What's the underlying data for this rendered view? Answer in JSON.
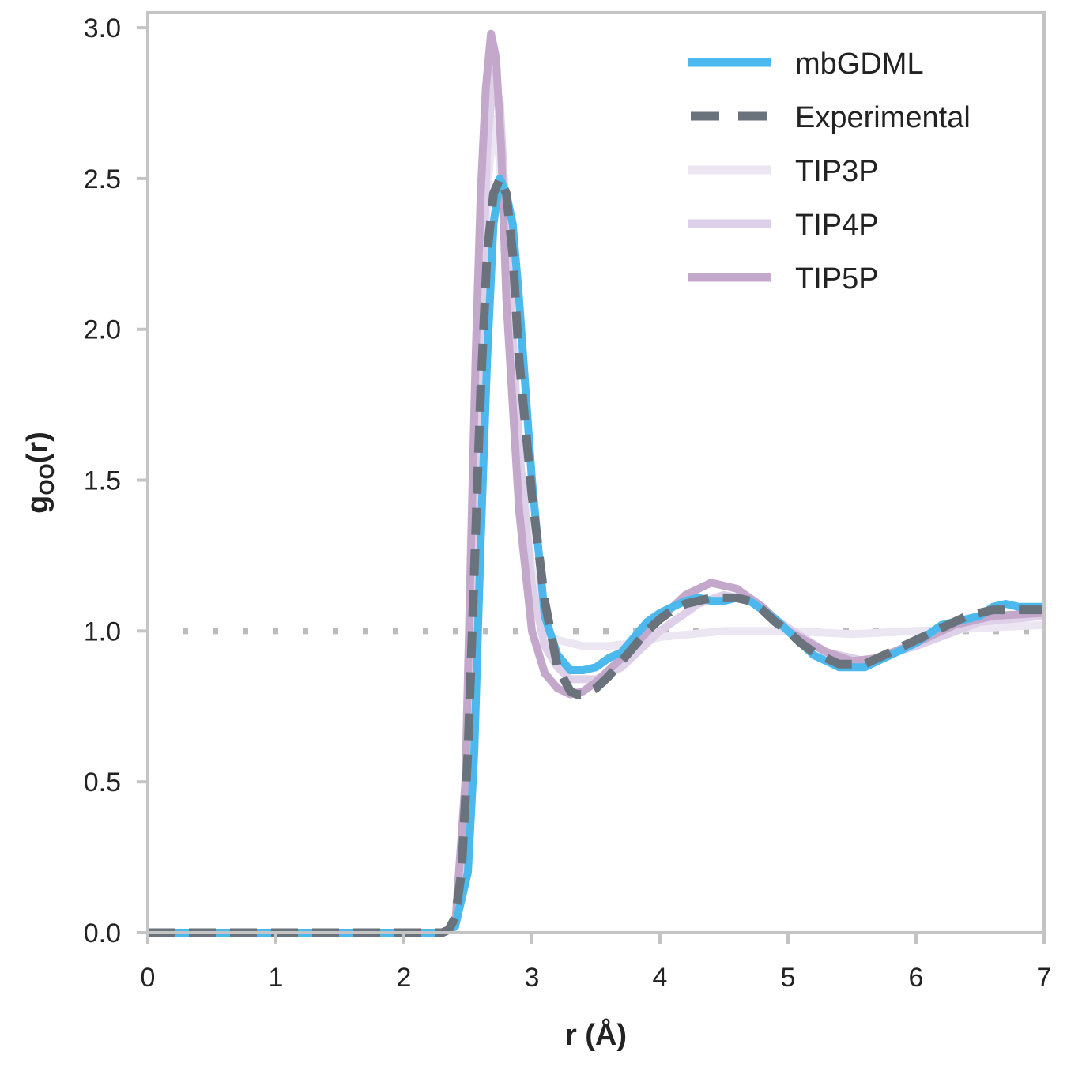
{
  "chart_data": {
    "type": "line",
    "xlabel": "r (Å)",
    "ylabel": {
      "main": "g",
      "sub": "OO",
      "tail": "(r)"
    },
    "xlim": [
      0,
      7
    ],
    "ylim": [
      0,
      3.05
    ],
    "x_ticks": [
      "0",
      "1",
      "2",
      "3",
      "4",
      "5",
      "6",
      "7"
    ],
    "y_ticks": [
      "0.0",
      "0.5",
      "1.0",
      "1.5",
      "2.0",
      "2.5",
      "3.0"
    ],
    "grid": false,
    "legend_position": "top-right",
    "reference_line": {
      "y": 1.0,
      "style": "dotted",
      "color": "#bbbbbb"
    },
    "series": [
      {
        "name": "TIP3P",
        "color": "#ece6f2",
        "style": "solid",
        "points": [
          [
            0,
            0
          ],
          [
            2.3,
            0
          ],
          [
            2.4,
            0.02
          ],
          [
            2.5,
            0.35
          ],
          [
            2.6,
            1.8
          ],
          [
            2.65,
            2.45
          ],
          [
            2.7,
            2.7
          ],
          [
            2.75,
            2.55
          ],
          [
            2.8,
            2.2
          ],
          [
            2.9,
            1.6
          ],
          [
            3.0,
            1.2
          ],
          [
            3.1,
            1.0
          ],
          [
            3.2,
            0.97
          ],
          [
            3.4,
            0.95
          ],
          [
            3.6,
            0.95
          ],
          [
            3.8,
            0.96
          ],
          [
            4.0,
            0.98
          ],
          [
            4.5,
            1.0
          ],
          [
            5.0,
            1.0
          ],
          [
            5.5,
            0.99
          ],
          [
            6.0,
            1.0
          ],
          [
            6.5,
            1.01
          ],
          [
            7.0,
            1.02
          ]
        ]
      },
      {
        "name": "TIP4P",
        "color": "#ddd0e8",
        "style": "solid",
        "points": [
          [
            0,
            0
          ],
          [
            2.3,
            0
          ],
          [
            2.4,
            0.02
          ],
          [
            2.5,
            0.4
          ],
          [
            2.6,
            1.9
          ],
          [
            2.65,
            2.6
          ],
          [
            2.7,
            2.85
          ],
          [
            2.75,
            2.75
          ],
          [
            2.8,
            2.35
          ],
          [
            2.9,
            1.6
          ],
          [
            3.0,
            1.15
          ],
          [
            3.1,
            0.95
          ],
          [
            3.2,
            0.88
          ],
          [
            3.3,
            0.84
          ],
          [
            3.5,
            0.84
          ],
          [
            3.7,
            0.88
          ],
          [
            4.0,
            1.0
          ],
          [
            4.3,
            1.09
          ],
          [
            4.5,
            1.12
          ],
          [
            4.7,
            1.1
          ],
          [
            5.0,
            1.01
          ],
          [
            5.3,
            0.93
          ],
          [
            5.6,
            0.9
          ],
          [
            6.0,
            0.95
          ],
          [
            6.5,
            1.03
          ],
          [
            7.0,
            1.05
          ]
        ]
      },
      {
        "name": "TIP5P",
        "color": "#c4a8cc",
        "style": "solid",
        "points": [
          [
            0,
            0
          ],
          [
            2.3,
            0
          ],
          [
            2.4,
            0.02
          ],
          [
            2.48,
            0.5
          ],
          [
            2.52,
            1.2
          ],
          [
            2.56,
            1.9
          ],
          [
            2.6,
            2.45
          ],
          [
            2.64,
            2.8
          ],
          [
            2.68,
            2.98
          ],
          [
            2.72,
            2.9
          ],
          [
            2.76,
            2.6
          ],
          [
            2.8,
            2.1
          ],
          [
            2.9,
            1.4
          ],
          [
            3.0,
            1.0
          ],
          [
            3.1,
            0.86
          ],
          [
            3.2,
            0.81
          ],
          [
            3.3,
            0.79
          ],
          [
            3.4,
            0.8
          ],
          [
            3.5,
            0.83
          ],
          [
            3.7,
            0.91
          ],
          [
            4.0,
            1.04
          ],
          [
            4.2,
            1.12
          ],
          [
            4.4,
            1.16
          ],
          [
            4.6,
            1.14
          ],
          [
            4.8,
            1.08
          ],
          [
            5.0,
            1.0
          ],
          [
            5.3,
            0.93
          ],
          [
            5.5,
            0.9
          ],
          [
            5.7,
            0.91
          ],
          [
            6.0,
            0.96
          ],
          [
            6.3,
            1.02
          ],
          [
            6.6,
            1.05
          ],
          [
            7.0,
            1.06
          ]
        ]
      },
      {
        "name": "mbGDML",
        "color": "#4bb8ee",
        "style": "solid",
        "points": [
          [
            0,
            0
          ],
          [
            2.3,
            0
          ],
          [
            2.4,
            0.02
          ],
          [
            2.5,
            0.2
          ],
          [
            2.55,
            0.6
          ],
          [
            2.6,
            1.3
          ],
          [
            2.65,
            1.9
          ],
          [
            2.7,
            2.35
          ],
          [
            2.75,
            2.5
          ],
          [
            2.8,
            2.45
          ],
          [
            2.85,
            2.35
          ],
          [
            2.9,
            2.1
          ],
          [
            3.0,
            1.5
          ],
          [
            3.1,
            1.05
          ],
          [
            3.2,
            0.92
          ],
          [
            3.3,
            0.87
          ],
          [
            3.4,
            0.87
          ],
          [
            3.5,
            0.88
          ],
          [
            3.6,
            0.91
          ],
          [
            3.7,
            0.93
          ],
          [
            3.8,
            0.98
          ],
          [
            3.9,
            1.03
          ],
          [
            4.0,
            1.06
          ],
          [
            4.1,
            1.08
          ],
          [
            4.2,
            1.1
          ],
          [
            4.3,
            1.11
          ],
          [
            4.4,
            1.1
          ],
          [
            4.5,
            1.1
          ],
          [
            4.6,
            1.11
          ],
          [
            4.7,
            1.1
          ],
          [
            4.8,
            1.07
          ],
          [
            4.9,
            1.04
          ],
          [
            5.0,
            1.0
          ],
          [
            5.1,
            0.96
          ],
          [
            5.2,
            0.92
          ],
          [
            5.3,
            0.9
          ],
          [
            5.4,
            0.88
          ],
          [
            5.5,
            0.88
          ],
          [
            5.6,
            0.88
          ],
          [
            5.7,
            0.9
          ],
          [
            5.8,
            0.92
          ],
          [
            5.9,
            0.94
          ],
          [
            6.0,
            0.96
          ],
          [
            6.1,
            0.99
          ],
          [
            6.2,
            1.02
          ],
          [
            6.3,
            1.03
          ],
          [
            6.4,
            1.04
          ],
          [
            6.5,
            1.05
          ],
          [
            6.6,
            1.08
          ],
          [
            6.7,
            1.09
          ],
          [
            6.8,
            1.08
          ],
          [
            6.9,
            1.08
          ],
          [
            7.0,
            1.08
          ]
        ]
      },
      {
        "name": "Experimental",
        "color": "#6a727b",
        "style": "dashed",
        "points": [
          [
            0,
            0
          ],
          [
            2.3,
            0
          ],
          [
            2.35,
            0.01
          ],
          [
            2.4,
            0.05
          ],
          [
            2.45,
            0.2
          ],
          [
            2.5,
            0.6
          ],
          [
            2.55,
            1.2
          ],
          [
            2.6,
            1.8
          ],
          [
            2.65,
            2.25
          ],
          [
            2.7,
            2.45
          ],
          [
            2.75,
            2.5
          ],
          [
            2.8,
            2.45
          ],
          [
            2.85,
            2.25
          ],
          [
            2.9,
            1.9
          ],
          [
            3.0,
            1.45
          ],
          [
            3.1,
            1.1
          ],
          [
            3.2,
            0.88
          ],
          [
            3.3,
            0.8
          ],
          [
            3.35,
            0.79
          ],
          [
            3.4,
            0.79
          ],
          [
            3.5,
            0.81
          ],
          [
            3.6,
            0.85
          ],
          [
            3.7,
            0.9
          ],
          [
            3.8,
            0.95
          ],
          [
            3.9,
            1.0
          ],
          [
            4.0,
            1.04
          ],
          [
            4.1,
            1.07
          ],
          [
            4.2,
            1.09
          ],
          [
            4.3,
            1.1
          ],
          [
            4.4,
            1.11
          ],
          [
            4.5,
            1.11
          ],
          [
            4.6,
            1.11
          ],
          [
            4.7,
            1.1
          ],
          [
            4.8,
            1.07
          ],
          [
            4.9,
            1.03
          ],
          [
            5.0,
            1.0
          ],
          [
            5.1,
            0.96
          ],
          [
            5.2,
            0.93
          ],
          [
            5.3,
            0.91
          ],
          [
            5.4,
            0.89
          ],
          [
            5.5,
            0.89
          ],
          [
            5.6,
            0.89
          ],
          [
            5.7,
            0.91
          ],
          [
            5.8,
            0.93
          ],
          [
            5.9,
            0.95
          ],
          [
            6.0,
            0.97
          ],
          [
            6.1,
            0.99
          ],
          [
            6.2,
            1.01
          ],
          [
            6.3,
            1.03
          ],
          [
            6.4,
            1.05
          ],
          [
            6.5,
            1.06
          ],
          [
            6.6,
            1.07
          ],
          [
            6.7,
            1.07
          ],
          [
            6.8,
            1.07
          ],
          [
            6.9,
            1.07
          ],
          [
            7.0,
            1.07
          ]
        ]
      }
    ],
    "legend": [
      {
        "name": "mbGDML",
        "color": "#4bb8ee",
        "style": "solid"
      },
      {
        "name": "Experimental",
        "color": "#6a727b",
        "style": "dashed"
      },
      {
        "name": "TIP3P",
        "color": "#ece6f2",
        "style": "solid"
      },
      {
        "name": "TIP4P",
        "color": "#ddd0e8",
        "style": "solid"
      },
      {
        "name": "TIP5P",
        "color": "#c4a8cc",
        "style": "solid"
      }
    ]
  }
}
